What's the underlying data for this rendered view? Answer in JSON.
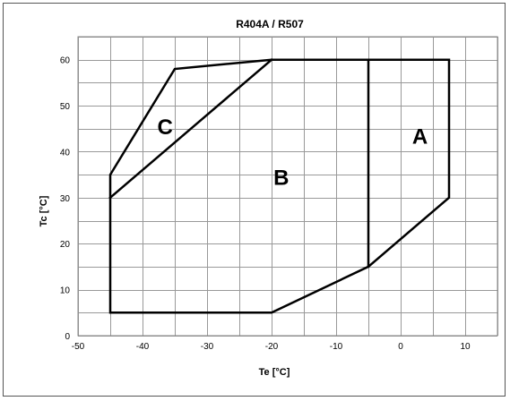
{
  "chart_data": {
    "type": "line",
    "title": "R404A / R507",
    "xlabel": "Te [°C]",
    "ylabel": "Tc [°C]",
    "xlim": [
      -50,
      15
    ],
    "ylim": [
      0,
      65
    ],
    "x_ticks": [
      -50,
      -40,
      -30,
      -20,
      -10,
      0,
      10
    ],
    "y_ticks": [
      0,
      10,
      20,
      30,
      40,
      50,
      60
    ],
    "grid": true,
    "legend": "none",
    "line_color": "#000000",
    "series": [
      {
        "points": [
          [
            -45,
            5
          ],
          [
            -20,
            5
          ],
          [
            -5,
            15
          ],
          [
            7.5,
            30
          ],
          [
            7.5,
            60
          ],
          [
            -20,
            60
          ],
          [
            -35,
            58
          ],
          [
            -45,
            35
          ],
          [
            -45,
            5
          ]
        ]
      },
      {
        "points": [
          [
            -45,
            30
          ],
          [
            -20,
            60
          ]
        ]
      },
      {
        "points": [
          [
            -5,
            15
          ],
          [
            -5,
            60
          ]
        ]
      }
    ],
    "annotations": [
      {
        "text": "A",
        "x": 3,
        "y": 43
      },
      {
        "text": "B",
        "x": -18.5,
        "y": 34
      },
      {
        "text": "C",
        "x": -36.5,
        "y": 45
      }
    ]
  }
}
